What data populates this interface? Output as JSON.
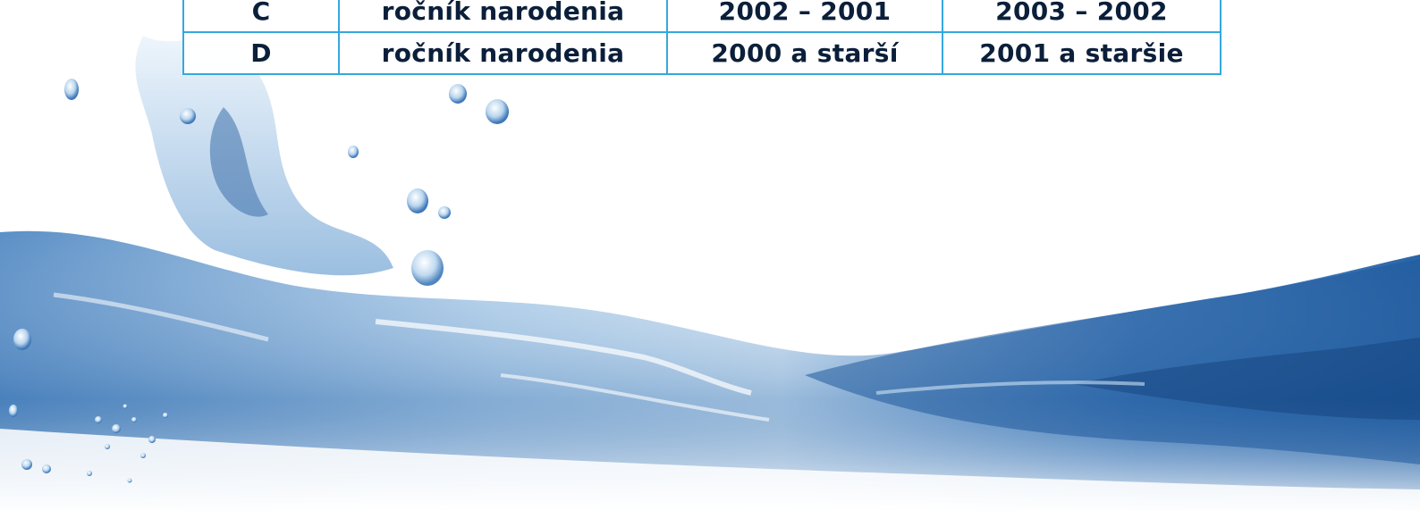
{
  "table": {
    "rows": [
      {
        "category": "C",
        "label": "ročník narodenia",
        "col1": "2002 – 2001",
        "col2": "2003 – 2002"
      },
      {
        "category": "D",
        "label": "ročník narodenia",
        "col1": "2000 a starší",
        "col2": "2001 a staršie"
      }
    ]
  },
  "colors": {
    "border": "#35a8de",
    "text": "#0b1f3a",
    "water_deep": "#1d5c9e",
    "water_light": "#bcdcf2"
  },
  "image": {
    "subject": "water-splash-wave"
  }
}
